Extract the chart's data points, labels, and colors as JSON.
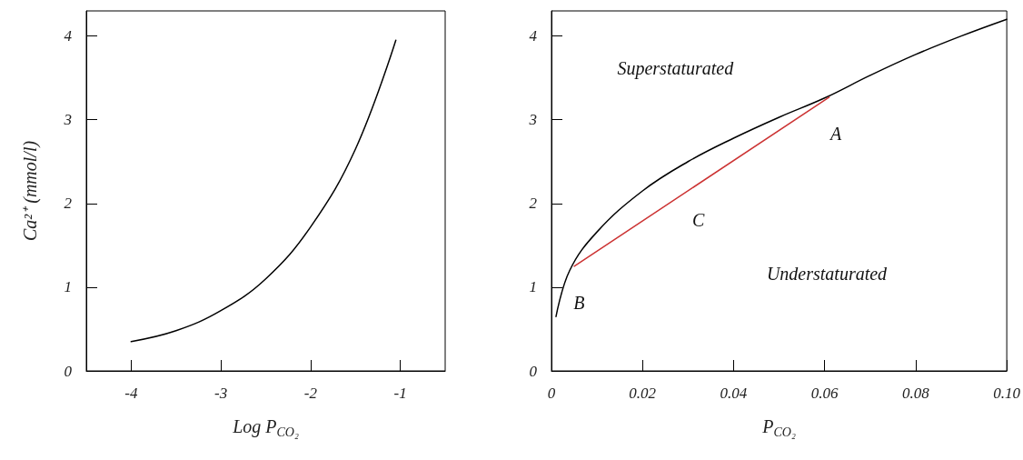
{
  "chart_data": [
    {
      "type": "line",
      "xlabel": "Log P$_{CO₂}$",
      "ylabel": "Ca²⁺ (mmol/l)",
      "x": [
        -4,
        -3.5,
        -3,
        -2.5,
        -2,
        -1.5,
        -1.05
      ],
      "series": [
        {
          "color": "#000000",
          "values": [
            0.35,
            0.48,
            0.72,
            1.1,
            1.72,
            2.65,
            3.95
          ]
        }
      ],
      "xlim": [
        -4.5,
        -0.5
      ],
      "xticks": [
        -4,
        -3,
        -2,
        -1
      ],
      "ylim": [
        0,
        4.3
      ],
      "yticks": [
        0,
        1,
        2,
        3,
        4
      ],
      "grid": false,
      "marker": "none"
    },
    {
      "type": "line",
      "xlabel": "P$_{CO₂}$",
      "x": [
        0.001,
        0.004,
        0.01,
        0.02,
        0.03,
        0.04,
        0.05,
        0.06,
        0.07,
        0.08,
        0.09,
        0.1
      ],
      "series": [
        {
          "color": "#000000",
          "values": [
            0.65,
            1.2,
            1.66,
            2.15,
            2.5,
            2.78,
            3.03,
            3.26,
            3.53,
            3.78,
            4.0,
            4.2
          ]
        },
        {
          "color": "#cc3333",
          "x": [
            0.005,
            0.061
          ],
          "values": [
            1.25,
            3.27
          ]
        }
      ],
      "xlim": [
        0,
        0.1
      ],
      "xticks": [
        0,
        0.02,
        0.04,
        0.06,
        0.08,
        {
          "value": 0.1,
          "label": "0.10"
        }
      ],
      "ylim": [
        0,
        4.3
      ],
      "yticks": [
        0,
        1,
        2,
        3,
        4
      ],
      "grid": false,
      "marker": "none",
      "annotations": [
        "Superstaturated",
        "A",
        "C",
        "B",
        "Understaturated"
      ]
    }
  ]
}
